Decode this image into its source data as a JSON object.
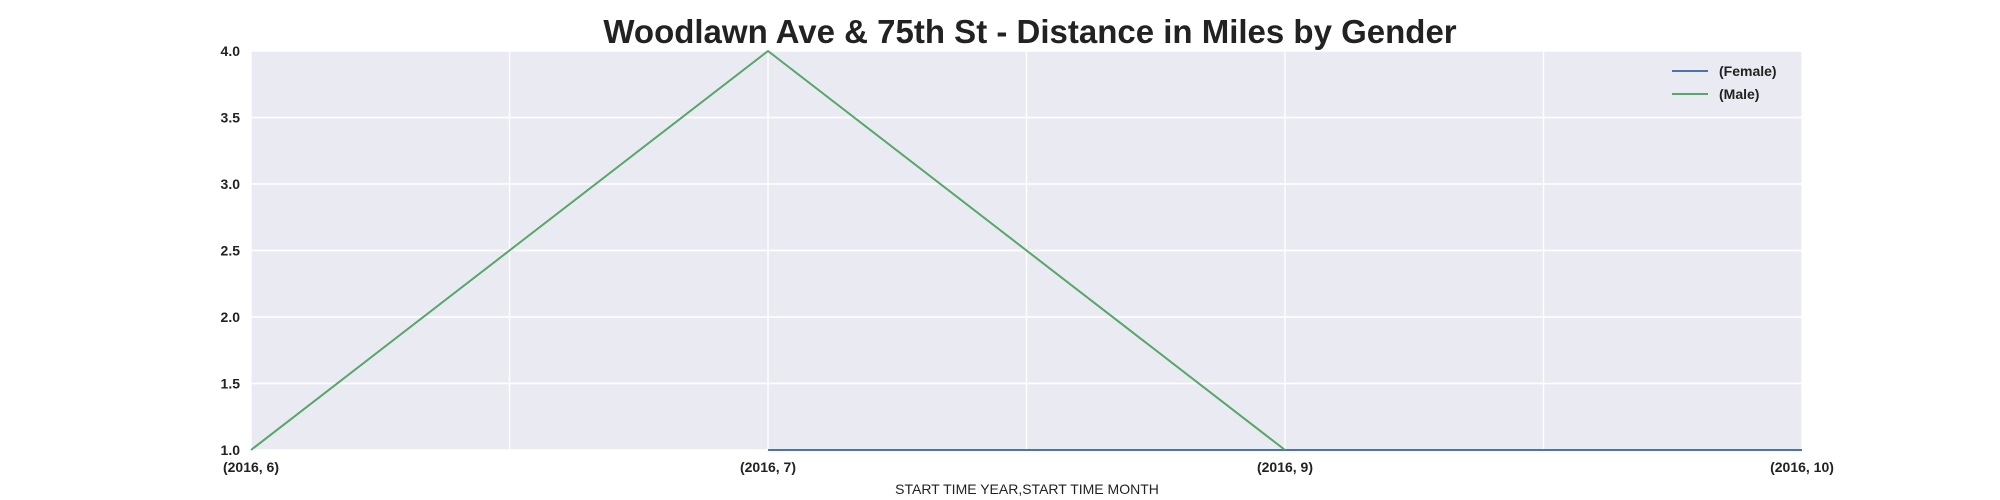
{
  "chart_data": {
    "type": "line",
    "title": "Woodlawn Ave & 75th St - Distance in Miles by Gender",
    "xlabel": "START TIME YEAR,START TIME MONTH",
    "ylabel": "",
    "categories": [
      "(2016, 6)",
      "(2016, 7)",
      "(2016, 9)",
      "(2016, 10)"
    ],
    "ylim": [
      1.0,
      4.0
    ],
    "yticks": [
      "1.0",
      "1.5",
      "2.0",
      "2.5",
      "3.0",
      "3.5",
      "4.0"
    ],
    "grid": true,
    "legend_position": "top-right",
    "series": [
      {
        "name": "(Female)",
        "color": "#4c72b0",
        "values": [
          null,
          1.0,
          1.0,
          1.0
        ]
      },
      {
        "name": "(Male)",
        "color": "#55a868",
        "values": [
          1.0,
          4.0,
          1.0,
          null
        ]
      }
    ]
  },
  "colors": {
    "plot_background": "#eaeaf2",
    "grid": "#ffffff",
    "text": "#222222"
  }
}
